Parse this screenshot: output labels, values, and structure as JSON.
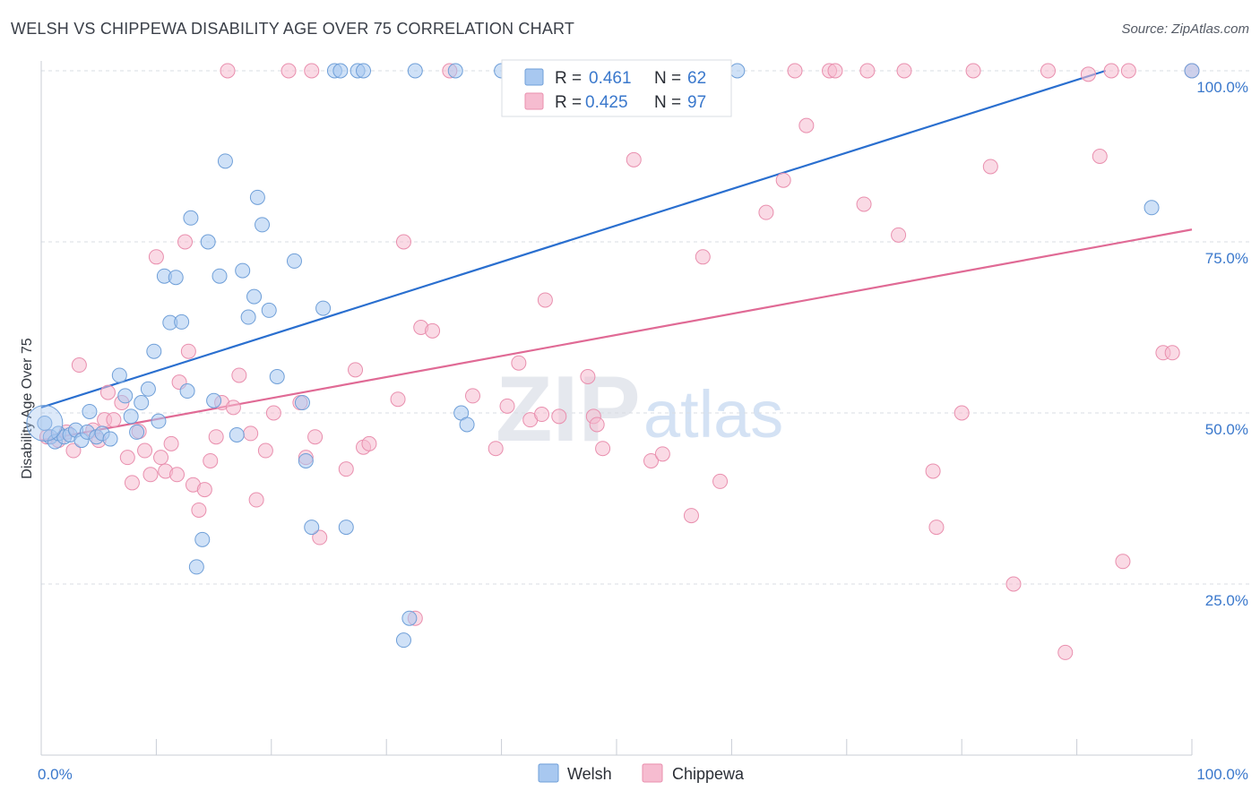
{
  "header": {
    "title": "WELSH VS CHIPPEWA DISABILITY AGE OVER 75 CORRELATION CHART",
    "source": "Source: ZipAtlas.com"
  },
  "watermark": {
    "zip": "ZIP",
    "atlas": "atlas"
  },
  "colors": {
    "welsh_fill": "#a8c8f0",
    "welsh_stroke": "#6f9fd8",
    "welsh_line": "#2a6fcf",
    "chippewa_fill": "#f6bcd0",
    "chippewa_stroke": "#e98fae",
    "chippewa_line": "#e06a95",
    "grid": "#d9dde3",
    "axis_text": "#3a78cc"
  },
  "legend": {
    "welsh": {
      "r_label": "R =",
      "r_value": "0.461",
      "n_label": "N =",
      "n_value": "62"
    },
    "chippewa": {
      "r_label": "R =",
      "r_value": "0.425",
      "n_label": "N =",
      "n_value": "97"
    }
  },
  "bottom_legend": {
    "welsh": "Welsh",
    "chippewa": "Chippewa"
  },
  "chart_data": {
    "type": "scatter",
    "title": "WELSH VS CHIPPEWA DISABILITY AGE OVER 75 CORRELATION CHART",
    "xlabel": "",
    "ylabel": "Disability Age Over 75",
    "xlim": [
      0,
      100
    ],
    "ylim": [
      0,
      100
    ],
    "x_tick_labels": [
      "0.0%",
      "100.0%"
    ],
    "y_tick_labels": [
      "25.0%",
      "50.0%",
      "75.0%",
      "100.0%"
    ],
    "y_ticks": [
      25,
      50,
      75,
      100
    ],
    "grid": true,
    "legend_position": "top-center",
    "series": [
      {
        "name": "Welsh",
        "r": 0.461,
        "n": 62,
        "trend": {
          "x": [
            0,
            92.5
          ],
          "y": [
            50.8,
            100
          ]
        },
        "points": [
          [
            0.3,
            48.5
          ],
          [
            0.8,
            46.5
          ],
          [
            1.2,
            45.8
          ],
          [
            1.5,
            47.0
          ],
          [
            2.0,
            46.5
          ],
          [
            2.5,
            46.8
          ],
          [
            3.0,
            47.5
          ],
          [
            3.5,
            46.0
          ],
          [
            4.0,
            47.2
          ],
          [
            4.2,
            50.2
          ],
          [
            4.8,
            46.5
          ],
          [
            5.3,
            47.0
          ],
          [
            6.0,
            46.2
          ],
          [
            6.8,
            55.5
          ],
          [
            7.3,
            52.5
          ],
          [
            7.8,
            49.5
          ],
          [
            8.3,
            47.2
          ],
          [
            8.7,
            51.5
          ],
          [
            9.3,
            53.5
          ],
          [
            9.8,
            59.0
          ],
          [
            10.2,
            48.8
          ],
          [
            10.7,
            70.0
          ],
          [
            11.2,
            63.2
          ],
          [
            11.7,
            69.8
          ],
          [
            12.2,
            63.3
          ],
          [
            12.7,
            53.2
          ],
          [
            13.0,
            78.5
          ],
          [
            14.0,
            31.5
          ],
          [
            13.5,
            27.5
          ],
          [
            14.5,
            75.0
          ],
          [
            15.0,
            51.8
          ],
          [
            15.5,
            70.0
          ],
          [
            16.0,
            86.8
          ],
          [
            17.0,
            46.8
          ],
          [
            17.5,
            70.8
          ],
          [
            18.0,
            64.0
          ],
          [
            18.5,
            67.0
          ],
          [
            18.8,
            81.5
          ],
          [
            19.2,
            77.5
          ],
          [
            19.8,
            65.0
          ],
          [
            20.5,
            55.3
          ],
          [
            22.0,
            72.2
          ],
          [
            22.7,
            51.5
          ],
          [
            23.0,
            43.0
          ],
          [
            23.5,
            33.3
          ],
          [
            24.5,
            65.3
          ],
          [
            25.5,
            100
          ],
          [
            26.0,
            100
          ],
          [
            26.5,
            33.3
          ],
          [
            27.5,
            100
          ],
          [
            28.0,
            100
          ],
          [
            31.5,
            16.8
          ],
          [
            32.0,
            20.0
          ],
          [
            32.5,
            100
          ],
          [
            36.0,
            100
          ],
          [
            36.5,
            50.0
          ],
          [
            37.0,
            48.3
          ],
          [
            40.0,
            100
          ],
          [
            45.0,
            100
          ],
          [
            60.5,
            100
          ],
          [
            96.5,
            80.0
          ],
          [
            100,
            100
          ]
        ]
      },
      {
        "name": "Chippewa",
        "r": 0.425,
        "n": 97,
        "trend": {
          "x": [
            0,
            100
          ],
          "y": [
            46.0,
            76.8
          ]
        },
        "points": [
          [
            0.5,
            46.5
          ],
          [
            1.5,
            46.0
          ],
          [
            2.2,
            47.2
          ],
          [
            2.8,
            44.5
          ],
          [
            3.3,
            57.0
          ],
          [
            4.5,
            47.5
          ],
          [
            5.0,
            46.0
          ],
          [
            5.5,
            49.0
          ],
          [
            5.8,
            53.0
          ],
          [
            6.3,
            49.0
          ],
          [
            7.0,
            51.5
          ],
          [
            7.5,
            43.5
          ],
          [
            7.9,
            39.8
          ],
          [
            8.5,
            47.3
          ],
          [
            9.0,
            44.5
          ],
          [
            9.5,
            41.0
          ],
          [
            10.0,
            72.8
          ],
          [
            10.4,
            43.5
          ],
          [
            10.8,
            41.5
          ],
          [
            11.3,
            45.5
          ],
          [
            11.8,
            41.0
          ],
          [
            12.0,
            54.5
          ],
          [
            12.5,
            75.0
          ],
          [
            12.8,
            59.0
          ],
          [
            13.2,
            39.5
          ],
          [
            13.7,
            35.8
          ],
          [
            14.2,
            38.8
          ],
          [
            14.7,
            43.0
          ],
          [
            15.2,
            46.5
          ],
          [
            15.7,
            51.5
          ],
          [
            16.2,
            100
          ],
          [
            16.7,
            50.8
          ],
          [
            17.2,
            55.5
          ],
          [
            18.2,
            47.0
          ],
          [
            18.7,
            37.3
          ],
          [
            19.5,
            44.5
          ],
          [
            20.2,
            50.0
          ],
          [
            21.5,
            100
          ],
          [
            22.5,
            51.5
          ],
          [
            23.0,
            43.5
          ],
          [
            23.5,
            100
          ],
          [
            23.8,
            46.5
          ],
          [
            24.2,
            31.8
          ],
          [
            26.5,
            41.8
          ],
          [
            27.3,
            56.3
          ],
          [
            28.0,
            45.0
          ],
          [
            28.5,
            45.5
          ],
          [
            31.0,
            52.0
          ],
          [
            31.5,
            75.0
          ],
          [
            32.5,
            20.0
          ],
          [
            33.0,
            62.5
          ],
          [
            34.0,
            62.0
          ],
          [
            35.5,
            100
          ],
          [
            37.5,
            52.5
          ],
          [
            39.5,
            44.8
          ],
          [
            40.5,
            51.0
          ],
          [
            41.5,
            57.3
          ],
          [
            42.5,
            49.0
          ],
          [
            43.5,
            49.8
          ],
          [
            43.8,
            66.5
          ],
          [
            45.0,
            49.5
          ],
          [
            47.5,
            55.3
          ],
          [
            48.0,
            49.5
          ],
          [
            48.3,
            48.3
          ],
          [
            48.8,
            44.8
          ],
          [
            51.5,
            87.0
          ],
          [
            53.0,
            43.0
          ],
          [
            54.0,
            44.0
          ],
          [
            56.5,
            35.0
          ],
          [
            57.5,
            72.8
          ],
          [
            59.0,
            40.0
          ],
          [
            63.0,
            79.3
          ],
          [
            64.5,
            84.0
          ],
          [
            65.5,
            100
          ],
          [
            66.5,
            92.0
          ],
          [
            68.5,
            100
          ],
          [
            69.0,
            100
          ],
          [
            71.5,
            80.5
          ],
          [
            71.8,
            100
          ],
          [
            74.5,
            76.0
          ],
          [
            75.0,
            100
          ],
          [
            77.5,
            41.5
          ],
          [
            77.8,
            33.3
          ],
          [
            80.0,
            50.0
          ],
          [
            81.0,
            100
          ],
          [
            82.5,
            86.0
          ],
          [
            84.5,
            25.0
          ],
          [
            87.5,
            100
          ],
          [
            89.0,
            15.0
          ],
          [
            91.0,
            99.5
          ],
          [
            92.0,
            87.5
          ],
          [
            93.0,
            100
          ],
          [
            94.5,
            100
          ],
          [
            94.0,
            28.3
          ],
          [
            97.5,
            58.8
          ],
          [
            98.3,
            58.8
          ],
          [
            100,
            100
          ]
        ]
      }
    ]
  }
}
